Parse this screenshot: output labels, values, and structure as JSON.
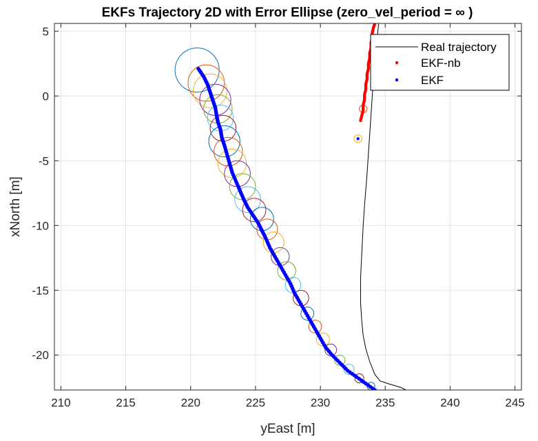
{
  "chart_data": {
    "type": "scatter",
    "title": "EKFs Trajectory 2D with Error Ellipse (zero_vel_period = ∞ )",
    "xlabel": "yEast [m]",
    "ylabel": "xNorth [m]",
    "xlim": [
      209.5,
      245.5
    ],
    "ylim": [
      -22.7,
      5.6
    ],
    "xticks": [
      210,
      215,
      220,
      225,
      230,
      235,
      240,
      245
    ],
    "yticks": [
      5,
      0,
      -5,
      -10,
      -15,
      -20
    ],
    "grid": true,
    "legend_position": "top-right",
    "legend": [
      "Real trajectory",
      "EKF-nb",
      "EKF"
    ],
    "colors": {
      "real": "#000000",
      "ekf_nb": "#ff0000",
      "ekf": "#0000ff",
      "ellipse_cycle": [
        "#0072bd",
        "#d95319",
        "#edb120",
        "#7e2f8e",
        "#77ac30",
        "#4dbeee",
        "#a2142f"
      ]
    },
    "series": [
      {
        "name": "Real trajectory",
        "style": "line",
        "x": [
          234.5,
          234.2,
          234.0,
          233.8,
          233.6,
          233.4,
          233.3,
          233.2,
          233.1,
          233.1,
          233.2,
          233.3,
          233.5,
          233.8,
          234.2,
          234.6,
          235.2,
          236.2,
          236.6
        ],
        "y": [
          5.6,
          3.0,
          0.0,
          -3.0,
          -6.0,
          -8.5,
          -10.0,
          -12.0,
          -14.0,
          -16.0,
          -17.5,
          -18.5,
          -19.5,
          -20.5,
          -21.5,
          -22.0,
          -22.2,
          -22.5,
          -22.7
        ]
      },
      {
        "name": "EKF-nb",
        "style": "points",
        "x": [
          233.1,
          233.2,
          233.3,
          233.3,
          233.4,
          233.4,
          233.5,
          233.5,
          233.6,
          233.6,
          233.7,
          233.7,
          233.8,
          233.8,
          233.9,
          233.9,
          234.0,
          234.0,
          234.1,
          234.2
        ],
        "y": [
          -1.9,
          -1.5,
          -1.1,
          -0.7,
          -0.3,
          0.1,
          0.5,
          0.9,
          1.3,
          1.7,
          2.1,
          2.5,
          2.9,
          3.3,
          3.7,
          4.1,
          4.5,
          4.9,
          5.3,
          5.6
        ]
      },
      {
        "name": "EKF",
        "style": "points",
        "x": [
          220.6,
          221.0,
          221.3,
          221.5,
          221.7,
          221.9,
          222.0,
          222.1,
          222.3,
          222.4,
          222.6,
          222.8,
          223.0,
          223.2,
          223.5,
          223.8,
          224.1,
          224.4,
          224.8,
          225.2,
          225.5,
          225.8,
          226.1,
          226.5,
          226.9,
          227.3,
          227.7,
          228.0,
          228.4,
          228.8,
          229.2,
          229.6,
          230.0,
          230.4,
          230.9,
          231.5,
          232.1,
          232.8,
          233.5,
          234.2
        ],
        "y": [
          2.1,
          1.5,
          0.9,
          0.3,
          -0.3,
          -0.9,
          -1.5,
          -2.0,
          -2.6,
          -3.2,
          -3.8,
          -4.5,
          -5.2,
          -5.9,
          -6.6,
          -7.3,
          -8.0,
          -8.6,
          -9.2,
          -9.8,
          -10.4,
          -11.0,
          -11.7,
          -12.4,
          -13.1,
          -13.8,
          -14.5,
          -15.2,
          -15.9,
          -16.6,
          -17.3,
          -18.0,
          -18.7,
          -19.4,
          -20.0,
          -20.6,
          -21.2,
          -21.7,
          -22.2,
          -22.7
        ]
      },
      {
        "name": "EKF-nb start marker",
        "style": "points",
        "x": [
          232.9
        ],
        "y": [
          -3.3
        ]
      }
    ],
    "error_ellipses": [
      {
        "x": 220.5,
        "y": 2.0,
        "r": 1.7
      },
      {
        "x": 221.2,
        "y": 1.0,
        "r": 1.4
      },
      {
        "x": 221.5,
        "y": 0.4,
        "r": 1.3
      },
      {
        "x": 221.9,
        "y": -0.3,
        "r": 1.2
      },
      {
        "x": 222.1,
        "y": -1.0,
        "r": 1.1
      },
      {
        "x": 222.3,
        "y": -1.7,
        "r": 1.0
      },
      {
        "x": 222.5,
        "y": -2.5,
        "r": 1.0
      },
      {
        "x": 222.6,
        "y": -3.5,
        "r": 1.2
      },
      {
        "x": 222.9,
        "y": -4.3,
        "r": 1.1
      },
      {
        "x": 223.2,
        "y": -5.2,
        "r": 1.1
      },
      {
        "x": 223.6,
        "y": -6.0,
        "r": 1.0
      },
      {
        "x": 224.0,
        "y": -7.0,
        "r": 1.0
      },
      {
        "x": 224.4,
        "y": -8.0,
        "r": 1.0
      },
      {
        "x": 224.9,
        "y": -8.8,
        "r": 0.9
      },
      {
        "x": 225.5,
        "y": -9.5,
        "r": 0.9
      },
      {
        "x": 225.9,
        "y": -10.3,
        "r": 0.8
      },
      {
        "x": 226.4,
        "y": -11.3,
        "r": 0.8
      },
      {
        "x": 226.9,
        "y": -12.4,
        "r": 0.7
      },
      {
        "x": 227.4,
        "y": -13.5,
        "r": 0.7
      },
      {
        "x": 227.9,
        "y": -14.6,
        "r": 0.6
      },
      {
        "x": 228.5,
        "y": -15.6,
        "r": 0.6
      },
      {
        "x": 229.0,
        "y": -16.8,
        "r": 0.5
      },
      {
        "x": 229.6,
        "y": -17.8,
        "r": 0.5
      },
      {
        "x": 230.2,
        "y": -18.8,
        "r": 0.5
      },
      {
        "x": 230.8,
        "y": -19.6,
        "r": 0.45
      },
      {
        "x": 231.5,
        "y": -20.4,
        "r": 0.4
      },
      {
        "x": 232.2,
        "y": -21.1,
        "r": 0.4
      },
      {
        "x": 233.0,
        "y": -21.8,
        "r": 0.35
      },
      {
        "x": 233.9,
        "y": -22.4,
        "r": 0.3
      },
      {
        "x": 233.3,
        "y": -1.0,
        "r": 0.3
      },
      {
        "x": 232.9,
        "y": -3.3,
        "r": 0.3
      }
    ]
  }
}
